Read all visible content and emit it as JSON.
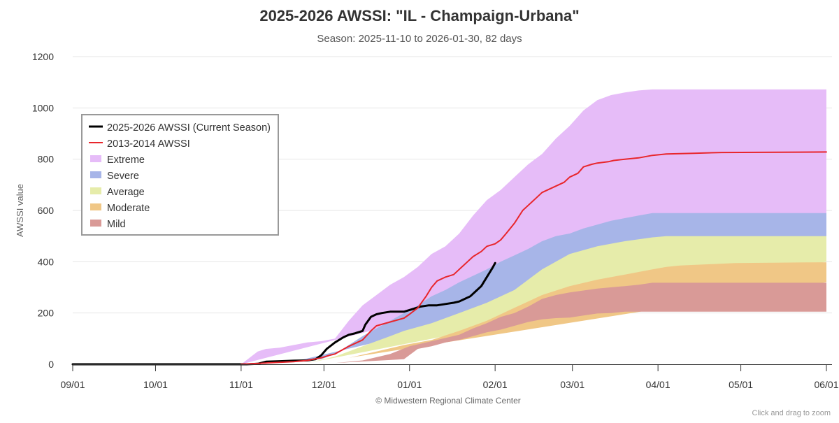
{
  "chart_data": {
    "type": "area",
    "title": "2025-2026 AWSSI: \"IL - Champaign-Urbana\"",
    "subtitle": "Season: 2025-11-10 to 2026-01-30, 82 days",
    "ylabel": "AWSSI value",
    "xlabel": "",
    "ylim": [
      0,
      1200
    ],
    "yticks": [
      0,
      200,
      400,
      600,
      800,
      1000,
      1200
    ],
    "xlim": [
      0,
      273
    ],
    "x_unit": "days since Sep 1",
    "xticks": [
      {
        "day": 0,
        "label": "09/01"
      },
      {
        "day": 30,
        "label": "10/01"
      },
      {
        "day": 61,
        "label": "11/01"
      },
      {
        "day": 91,
        "label": "12/01"
      },
      {
        "day": 122,
        "label": "01/01"
      },
      {
        "day": 153,
        "label": "02/01"
      },
      {
        "day": 181,
        "label": "03/01"
      },
      {
        "day": 212,
        "label": "04/01"
      },
      {
        "day": 242,
        "label": "05/01"
      },
      {
        "day": 273,
        "label": "06/01"
      }
    ],
    "bands": [
      {
        "name": "Extreme",
        "color": "#e6bcf8",
        "upper": [
          [
            61,
            0
          ],
          [
            67,
            50
          ],
          [
            70,
            60
          ],
          [
            75,
            65
          ],
          [
            80,
            75
          ],
          [
            85,
            85
          ],
          [
            90,
            90
          ],
          [
            95,
            100
          ],
          [
            100,
            170
          ],
          [
            105,
            230
          ],
          [
            110,
            270
          ],
          [
            115,
            310
          ],
          [
            120,
            340
          ],
          [
            125,
            380
          ],
          [
            130,
            430
          ],
          [
            135,
            460
          ],
          [
            140,
            510
          ],
          [
            145,
            580
          ],
          [
            150,
            640
          ],
          [
            155,
            680
          ],
          [
            160,
            730
          ],
          [
            165,
            780
          ],
          [
            170,
            820
          ],
          [
            175,
            880
          ],
          [
            180,
            930
          ],
          [
            185,
            990
          ],
          [
            190,
            1030
          ],
          [
            195,
            1050
          ],
          [
            200,
            1060
          ],
          [
            205,
            1068
          ],
          [
            210,
            1072
          ],
          [
            273,
            1072
          ]
        ],
        "lower": [
          [
            61,
            0
          ],
          [
            273,
            590
          ]
        ]
      },
      {
        "name": "Severe",
        "color": "#a7b5e8",
        "upper": [
          [
            80,
            10
          ],
          [
            90,
            20
          ],
          [
            95,
            40
          ],
          [
            100,
            75
          ],
          [
            105,
            110
          ],
          [
            110,
            140
          ],
          [
            115,
            170
          ],
          [
            120,
            200
          ],
          [
            125,
            230
          ],
          [
            130,
            265
          ],
          [
            135,
            290
          ],
          [
            140,
            320
          ],
          [
            145,
            345
          ],
          [
            150,
            370
          ],
          [
            155,
            400
          ],
          [
            160,
            425
          ],
          [
            165,
            450
          ],
          [
            170,
            480
          ],
          [
            175,
            500
          ],
          [
            180,
            510
          ],
          [
            185,
            530
          ],
          [
            190,
            545
          ],
          [
            195,
            560
          ],
          [
            200,
            570
          ],
          [
            205,
            580
          ],
          [
            210,
            590
          ],
          [
            273,
            590
          ]
        ],
        "lower": [
          [
            80,
            10
          ],
          [
            273,
            500
          ]
        ]
      },
      {
        "name": "Average",
        "color": "#e6ecaa",
        "upper": [
          [
            85,
            5
          ],
          [
            95,
            30
          ],
          [
            105,
            70
          ],
          [
            115,
            110
          ],
          [
            120,
            130
          ],
          [
            130,
            160
          ],
          [
            140,
            200
          ],
          [
            150,
            240
          ],
          [
            160,
            290
          ],
          [
            165,
            330
          ],
          [
            170,
            370
          ],
          [
            175,
            400
          ],
          [
            180,
            430
          ],
          [
            190,
            460
          ],
          [
            200,
            480
          ],
          [
            210,
            495
          ],
          [
            215,
            500
          ],
          [
            273,
            500
          ]
        ],
        "lower": [
          [
            85,
            5
          ],
          [
            273,
            400
          ]
        ]
      },
      {
        "name": "Moderate",
        "color": "#f0c786",
        "upper": [
          [
            88,
            5
          ],
          [
            100,
            25
          ],
          [
            110,
            50
          ],
          [
            120,
            75
          ],
          [
            130,
            95
          ],
          [
            140,
            130
          ],
          [
            150,
            170
          ],
          [
            160,
            220
          ],
          [
            170,
            270
          ],
          [
            180,
            305
          ],
          [
            190,
            330
          ],
          [
            200,
            350
          ],
          [
            210,
            370
          ],
          [
            215,
            380
          ],
          [
            220,
            385
          ],
          [
            230,
            390
          ],
          [
            240,
            395
          ],
          [
            273,
            398
          ]
        ],
        "lower": [
          [
            88,
            5
          ],
          [
            273,
            320
          ]
        ]
      },
      {
        "name": "Mild",
        "color": "#d99a97",
        "upper": [
          [
            95,
            5
          ],
          [
            105,
            15
          ],
          [
            115,
            40
          ],
          [
            122,
            70
          ],
          [
            130,
            90
          ],
          [
            140,
            115
          ],
          [
            145,
            140
          ],
          [
            150,
            160
          ],
          [
            155,
            185
          ],
          [
            160,
            200
          ],
          [
            165,
            225
          ],
          [
            170,
            255
          ],
          [
            175,
            270
          ],
          [
            180,
            280
          ],
          [
            190,
            295
          ],
          [
            200,
            305
          ],
          [
            205,
            310
          ],
          [
            210,
            318
          ],
          [
            273,
            318
          ]
        ],
        "lower": [
          [
            95,
            5
          ],
          [
            120,
            20
          ],
          [
            125,
            60
          ],
          [
            130,
            70
          ],
          [
            135,
            85
          ],
          [
            140,
            95
          ],
          [
            145,
            110
          ],
          [
            150,
            125
          ],
          [
            155,
            135
          ],
          [
            160,
            150
          ],
          [
            165,
            165
          ],
          [
            170,
            175
          ],
          [
            175,
            180
          ],
          [
            180,
            182
          ],
          [
            185,
            190
          ],
          [
            190,
            198
          ],
          [
            195,
            200
          ],
          [
            200,
            205
          ],
          [
            273,
            205
          ]
        ]
      }
    ],
    "series": [
      {
        "name": "2013-2014 AWSSI",
        "color": "#e8262c",
        "width": 2,
        "points": [
          [
            61,
            0
          ],
          [
            70,
            5
          ],
          [
            80,
            10
          ],
          [
            85,
            15
          ],
          [
            90,
            25
          ],
          [
            93,
            35
          ],
          [
            95,
            40
          ],
          [
            100,
            70
          ],
          [
            105,
            95
          ],
          [
            108,
            130
          ],
          [
            110,
            150
          ],
          [
            115,
            165
          ],
          [
            120,
            180
          ],
          [
            122,
            195
          ],
          [
            125,
            220
          ],
          [
            128,
            265
          ],
          [
            130,
            300
          ],
          [
            132,
            325
          ],
          [
            135,
            340
          ],
          [
            138,
            350
          ],
          [
            140,
            370
          ],
          [
            143,
            400
          ],
          [
            145,
            420
          ],
          [
            148,
            440
          ],
          [
            150,
            460
          ],
          [
            153,
            470
          ],
          [
            155,
            485
          ],
          [
            157,
            510
          ],
          [
            160,
            550
          ],
          [
            163,
            600
          ],
          [
            165,
            620
          ],
          [
            168,
            650
          ],
          [
            170,
            670
          ],
          [
            175,
            695
          ],
          [
            178,
            710
          ],
          [
            180,
            730
          ],
          [
            183,
            745
          ],
          [
            185,
            770
          ],
          [
            188,
            780
          ],
          [
            190,
            785
          ],
          [
            194,
            790
          ],
          [
            196,
            795
          ],
          [
            200,
            800
          ],
          [
            205,
            805
          ],
          [
            210,
            815
          ],
          [
            215,
            820
          ],
          [
            225,
            823
          ],
          [
            235,
            826
          ],
          [
            273,
            828
          ]
        ]
      },
      {
        "name": "2025-2026 AWSSI (Current Season)",
        "color": "#000000",
        "width": 3,
        "points": [
          [
            0,
            0
          ],
          [
            63,
            0
          ],
          [
            67,
            2
          ],
          [
            70,
            10
          ],
          [
            75,
            12
          ],
          [
            80,
            14
          ],
          [
            85,
            15
          ],
          [
            88,
            20
          ],
          [
            90,
            35
          ],
          [
            92,
            60
          ],
          [
            95,
            85
          ],
          [
            98,
            105
          ],
          [
            100,
            115
          ],
          [
            102,
            120
          ],
          [
            105,
            130
          ],
          [
            106,
            155
          ],
          [
            108,
            185
          ],
          [
            110,
            195
          ],
          [
            112,
            200
          ],
          [
            115,
            205
          ],
          [
            120,
            205
          ],
          [
            123,
            215
          ],
          [
            126,
            225
          ],
          [
            129,
            230
          ],
          [
            132,
            230
          ],
          [
            135,
            235
          ],
          [
            138,
            240
          ],
          [
            140,
            245
          ],
          [
            142,
            255
          ],
          [
            144,
            265
          ],
          [
            146,
            285
          ],
          [
            148,
            305
          ],
          [
            150,
            340
          ],
          [
            152,
            375
          ],
          [
            153,
            395
          ]
        ]
      }
    ],
    "legend": [
      {
        "label": "2025-2026 AWSSI (Current Season)",
        "kind": "line",
        "color": "#000000"
      },
      {
        "label": "2013-2014 AWSSI",
        "kind": "line",
        "color": "#e8262c"
      },
      {
        "label": "Extreme",
        "kind": "box",
        "color": "#e6bcf8"
      },
      {
        "label": "Severe",
        "kind": "box",
        "color": "#a7b5e8"
      },
      {
        "label": "Average",
        "kind": "box",
        "color": "#e6ecaa"
      },
      {
        "label": "Moderate",
        "kind": "box",
        "color": "#f0c786"
      },
      {
        "label": "Mild",
        "kind": "box",
        "color": "#d99a97"
      }
    ],
    "credit": "© Midwestern Regional Climate Center",
    "hint": "Click and drag to zoom"
  }
}
